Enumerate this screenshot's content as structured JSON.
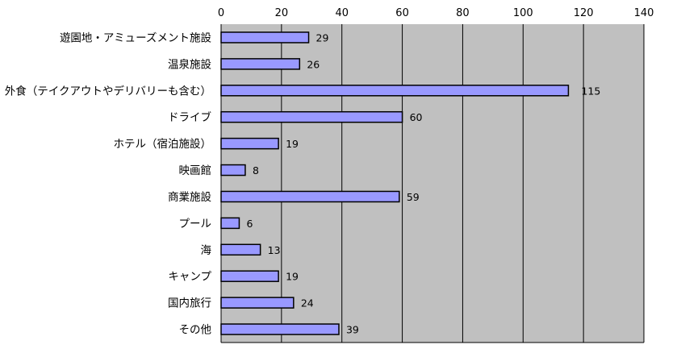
{
  "chart_data": {
    "type": "bar",
    "orientation": "horizontal",
    "categories": [
      "遊園地・アミューズメント施設",
      "温泉施設",
      "外食（テイクアウトやデリバリーも含む）",
      "ドライブ",
      "ホテル（宿泊施設）",
      "映画館",
      "商業施設",
      "プール",
      "海",
      "キャンプ",
      "国内旅行",
      "その他"
    ],
    "values": [
      29,
      26,
      115,
      60,
      19,
      8,
      59,
      6,
      13,
      19,
      24,
      39
    ],
    "value_labels": [
      "29",
      "26",
      "115",
      "60",
      "19",
      "8",
      "59",
      "6",
      "13",
      "19",
      "24",
      "39"
    ],
    "xlim": [
      0,
      140
    ],
    "x_ticks": [
      0,
      20,
      40,
      60,
      80,
      100,
      120,
      140
    ],
    "x_tick_labels": [
      "0",
      "20",
      "40",
      "60",
      "80",
      "100",
      "120",
      "140"
    ],
    "x_axis_position": "top",
    "grid": true,
    "legend": "none",
    "title": "",
    "xlabel": "",
    "ylabel": "",
    "colors": {
      "plot_background": "#c0c0c0",
      "bar_fill": "#9999ff",
      "bar_stroke": "#000000",
      "gridline": "#000000"
    }
  }
}
